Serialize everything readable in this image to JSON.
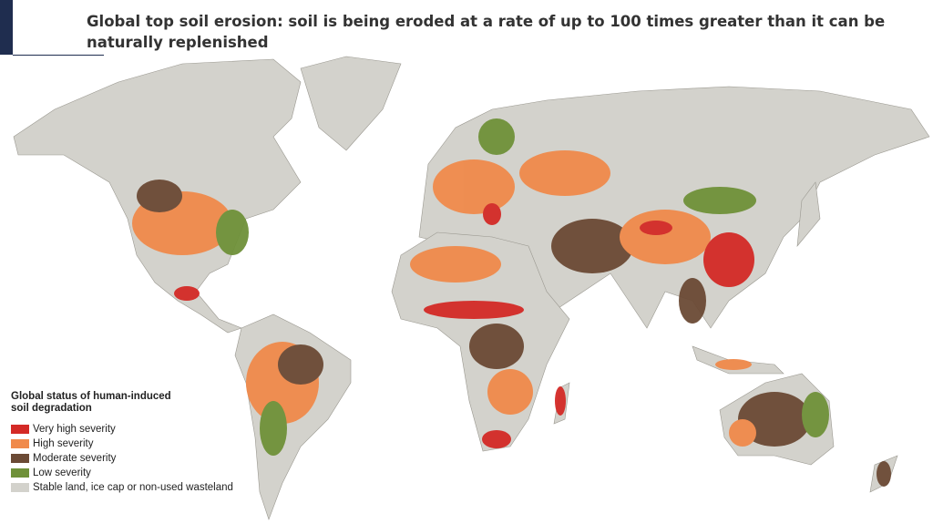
{
  "slide": {
    "title": "Global top soil erosion: soil is being eroded at a rate of up to 100 times greater than it can be naturally replenished",
    "legend": {
      "title": "Global status of human-induced soil degradation",
      "items": [
        {
          "label": "Very high severity",
          "color": "#d42a26"
        },
        {
          "label": "High severity",
          "color": "#f08a4b"
        },
        {
          "label": "Moderate severity",
          "color": "#6b4a35"
        },
        {
          "label": "Low severity",
          "color": "#6f9139"
        },
        {
          "label": "Stable land, ice cap or non-used wasteland",
          "color": "#d3d2cc"
        }
      ]
    }
  }
}
